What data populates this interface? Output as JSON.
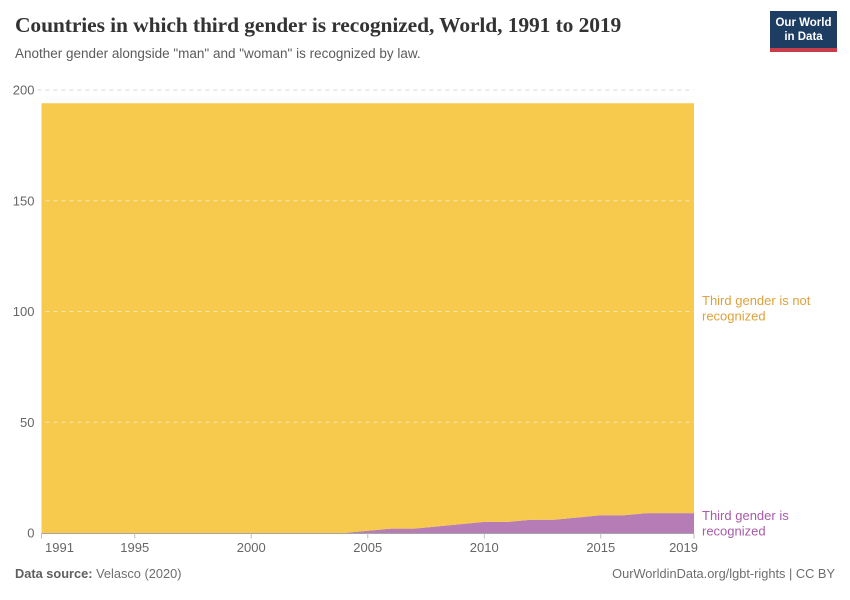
{
  "header": {
    "title": "Countries in which third gender is recognized, World, 1991 to 2019",
    "subtitle": "Another gender alongside \"man\" and \"woman\" is recognized by law.",
    "logo": {
      "line1": "Our World",
      "line2": "in Data",
      "bg": "#1d3d63",
      "accent": "#c93c4a"
    }
  },
  "chart_data": {
    "type": "area",
    "stacked": true,
    "title": "Countries in which third gender is recognized, World, 1991 to 2019",
    "x": [
      1991,
      1992,
      1993,
      1994,
      1995,
      1996,
      1997,
      1998,
      1999,
      2000,
      2001,
      2002,
      2003,
      2004,
      2005,
      2006,
      2007,
      2008,
      2009,
      2010,
      2011,
      2012,
      2013,
      2014,
      2015,
      2016,
      2017,
      2018,
      2019
    ],
    "series": [
      {
        "name": "Third gender is recognized",
        "label_lines": [
          "Third gender is",
          "recognized"
        ],
        "color": "#b57cb5",
        "label_color": "#a85ba8",
        "values": [
          0,
          0,
          0,
          0,
          0,
          0,
          0,
          0,
          0,
          0,
          0,
          0,
          0,
          0,
          1,
          2,
          2,
          3,
          4,
          5,
          5,
          6,
          6,
          7,
          8,
          8,
          9,
          9,
          9
        ]
      },
      {
        "name": "Third gender is not recognized",
        "label_lines": [
          "Third gender is not",
          "recognized"
        ],
        "color": "#f7c94d",
        "label_color": "#dfa13d",
        "values": [
          194,
          194,
          194,
          194,
          194,
          194,
          194,
          194,
          194,
          194,
          194,
          194,
          194,
          194,
          193,
          192,
          192,
          191,
          190,
          189,
          189,
          188,
          188,
          187,
          186,
          186,
          185,
          185,
          185
        ]
      }
    ],
    "ylim": [
      0,
      200
    ],
    "yticks": [
      0,
      50,
      100,
      150,
      200
    ],
    "xticks": [
      1991,
      1995,
      2000,
      2005,
      2010,
      2015,
      2019
    ],
    "grid": true,
    "legend_position": "right-of-plot",
    "axis_color": "#a5a5a5",
    "tick_text_color": "#666666",
    "gridline_color": "#dadada"
  },
  "footer": {
    "source_label": "Data source:",
    "source_value": "Velasco (2020)",
    "link": "OurWorldinData.org/lgbt-rights",
    "separator": "|",
    "license": "CC BY"
  }
}
